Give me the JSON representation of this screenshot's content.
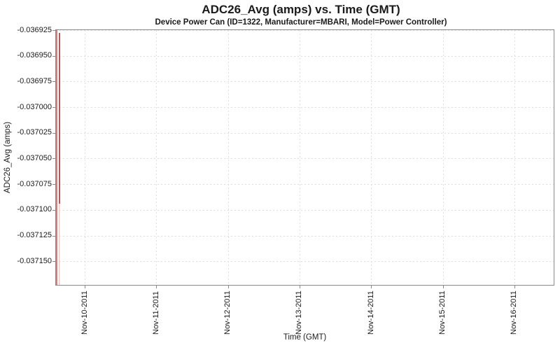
{
  "chart_data": {
    "type": "line",
    "title": "ADC26_Avg (amps) vs. Time (GMT)",
    "subtitle": "Device Power Can (ID=1322, Manufacturer=MBARI, Model=Power Controller)",
    "xlabel": "Time (GMT)",
    "ylabel": "ADC26_Avg (amps)",
    "legend": false,
    "grid": true,
    "plot_background": "#ffffff",
    "plot_border_color": "#8a8a8a",
    "gridline_color": "#dedede",
    "x_tick_labels": [
      "Nov-10-2011",
      "Nov-11-2011",
      "Nov-12-2011",
      "Nov-13-2011",
      "Nov-14-2011",
      "Nov-15-2011",
      "Nov-16-2011"
    ],
    "x_tick_interval": "1 day",
    "xlim_note": "x axis spans approx Nov-09-2011 14:30 GMT to Nov-16-2011 13:30 GMT; all data sits at the extreme left edge near Nov-09 15:00 GMT",
    "y_tick_labels": [
      "-0.036925",
      "-0.036950",
      "-0.036975",
      "-0.037000",
      "-0.037025",
      "-0.037050",
      "-0.037075",
      "-0.037100",
      "-0.037125",
      "-0.037150"
    ],
    "y_tick_values": [
      -0.036925,
      -0.03695,
      -0.036975,
      -0.037,
      -0.037025,
      -0.03705,
      -0.037075,
      -0.0371,
      -0.037125,
      -0.03715
    ],
    "ylim": [
      -0.0371737,
      -0.036925
    ],
    "series": [
      {
        "name": "ADC26_Avg",
        "color": "#cc5555",
        "description": "vertical spike cluster at left edge of plot; values oscillate between ~-0.036925 and ~-0.037174 amps around Nov-09-2011 ~15:00 GMT",
        "segments": [
          {
            "days_from_first_tick": -0.39,
            "y_from": -0.036925,
            "y_to": -0.0371737,
            "color": "#d97c7c",
            "width": 2.5,
            "desc": "spike hugging plot left edge, full y-range"
          },
          {
            "days_from_first_tick": -0.355,
            "y_from": -0.036928,
            "y_to": -0.037094,
            "color": "#c65353",
            "width": 2,
            "desc": "darker spike slightly later in time"
          },
          {
            "days_from_first_tick": -0.355,
            "y_from": -0.037094,
            "y_to": -0.0371737,
            "color": "#f2bdbd",
            "width": 1.5,
            "desc": "faint continuation down to bottom of plot"
          }
        ]
      }
    ]
  }
}
